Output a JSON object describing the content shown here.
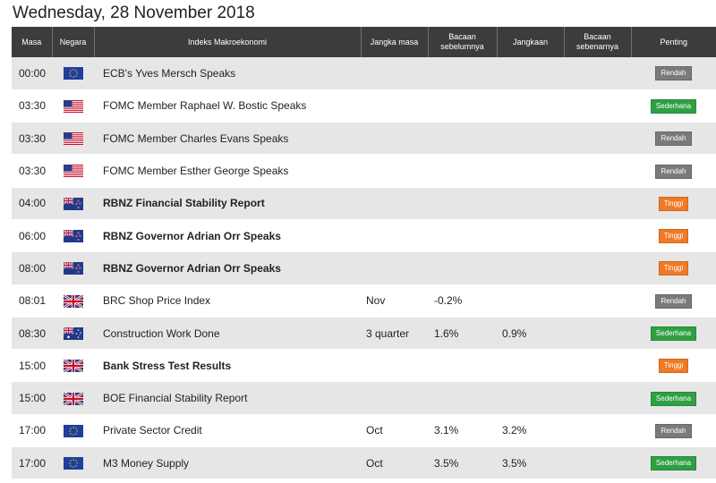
{
  "date_title": "Wednesday, 28 November 2018",
  "columns": {
    "time": "Masa",
    "country": "Negara",
    "event": "Indeks Makroekonomi",
    "period": "Jangka masa",
    "previous": "Bacaan sebelumnya",
    "forecast": "Jangkaan",
    "actual": "Bacaan sebenarnya",
    "importance": "Penting"
  },
  "importance_colors": {
    "Rendah": "#7a7a7a",
    "Sederhana": "#2ea043",
    "Tinggi": "#f07a26"
  },
  "rows": [
    {
      "time": "00:00",
      "flag": "eu-flag-icon",
      "event": "ECB's Yves Mersch Speaks",
      "bold": false,
      "period": "",
      "previous": "",
      "forecast": "",
      "actual": "",
      "importance": "Rendah"
    },
    {
      "time": "03:30",
      "flag": "us-flag-icon",
      "event": "FOMC Member Raphael W. Bostic Speaks",
      "bold": false,
      "period": "",
      "previous": "",
      "forecast": "",
      "actual": "",
      "importance": "Sederhana"
    },
    {
      "time": "03:30",
      "flag": "us-flag-icon",
      "event": "FOMC Member Charles Evans Speaks",
      "bold": false,
      "period": "",
      "previous": "",
      "forecast": "",
      "actual": "",
      "importance": "Rendah"
    },
    {
      "time": "03:30",
      "flag": "us-flag-icon",
      "event": "FOMC Member Esther George Speaks",
      "bold": false,
      "period": "",
      "previous": "",
      "forecast": "",
      "actual": "",
      "importance": "Rendah"
    },
    {
      "time": "04:00",
      "flag": "nz-flag-icon",
      "event": "RBNZ Financial Stability Report",
      "bold": true,
      "period": "",
      "previous": "",
      "forecast": "",
      "actual": "",
      "importance": "Tinggi"
    },
    {
      "time": "06:00",
      "flag": "nz-flag-icon",
      "event": "RBNZ Governor Adrian Orr Speaks",
      "bold": true,
      "period": "",
      "previous": "",
      "forecast": "",
      "actual": "",
      "importance": "Tinggi"
    },
    {
      "time": "08:00",
      "flag": "nz-flag-icon",
      "event": "RBNZ Governor Adrian Orr Speaks",
      "bold": true,
      "period": "",
      "previous": "",
      "forecast": "",
      "actual": "",
      "importance": "Tinggi"
    },
    {
      "time": "08:01",
      "flag": "uk-flag-icon",
      "event": "BRC Shop Price Index",
      "bold": false,
      "period": "Nov",
      "previous": "-0.2%",
      "forecast": "",
      "actual": "",
      "importance": "Rendah"
    },
    {
      "time": "08:30",
      "flag": "au-flag-icon",
      "event": "Construction Work Done",
      "bold": false,
      "period": "3 quarter",
      "previous": "1.6%",
      "forecast": "0.9%",
      "actual": "",
      "importance": "Sederhana"
    },
    {
      "time": "15:00",
      "flag": "uk-flag-icon",
      "event": "Bank Stress Test Results",
      "bold": true,
      "period": "",
      "previous": "",
      "forecast": "",
      "actual": "",
      "importance": "Tinggi"
    },
    {
      "time": "15:00",
      "flag": "uk-flag-icon",
      "event": "BOE Financial Stability Report",
      "bold": false,
      "period": "",
      "previous": "",
      "forecast": "",
      "actual": "",
      "importance": "Sederhana"
    },
    {
      "time": "17:00",
      "flag": "eu-flag-icon",
      "event": "Private Sector Credit",
      "bold": false,
      "period": "Oct",
      "previous": "3.1%",
      "forecast": "3.2%",
      "actual": "",
      "importance": "Rendah"
    },
    {
      "time": "17:00",
      "flag": "eu-flag-icon",
      "event": "M3 Money Supply",
      "bold": false,
      "period": "Oct",
      "previous": "3.5%",
      "forecast": "3.5%",
      "actual": "",
      "importance": "Sederhana"
    }
  ]
}
